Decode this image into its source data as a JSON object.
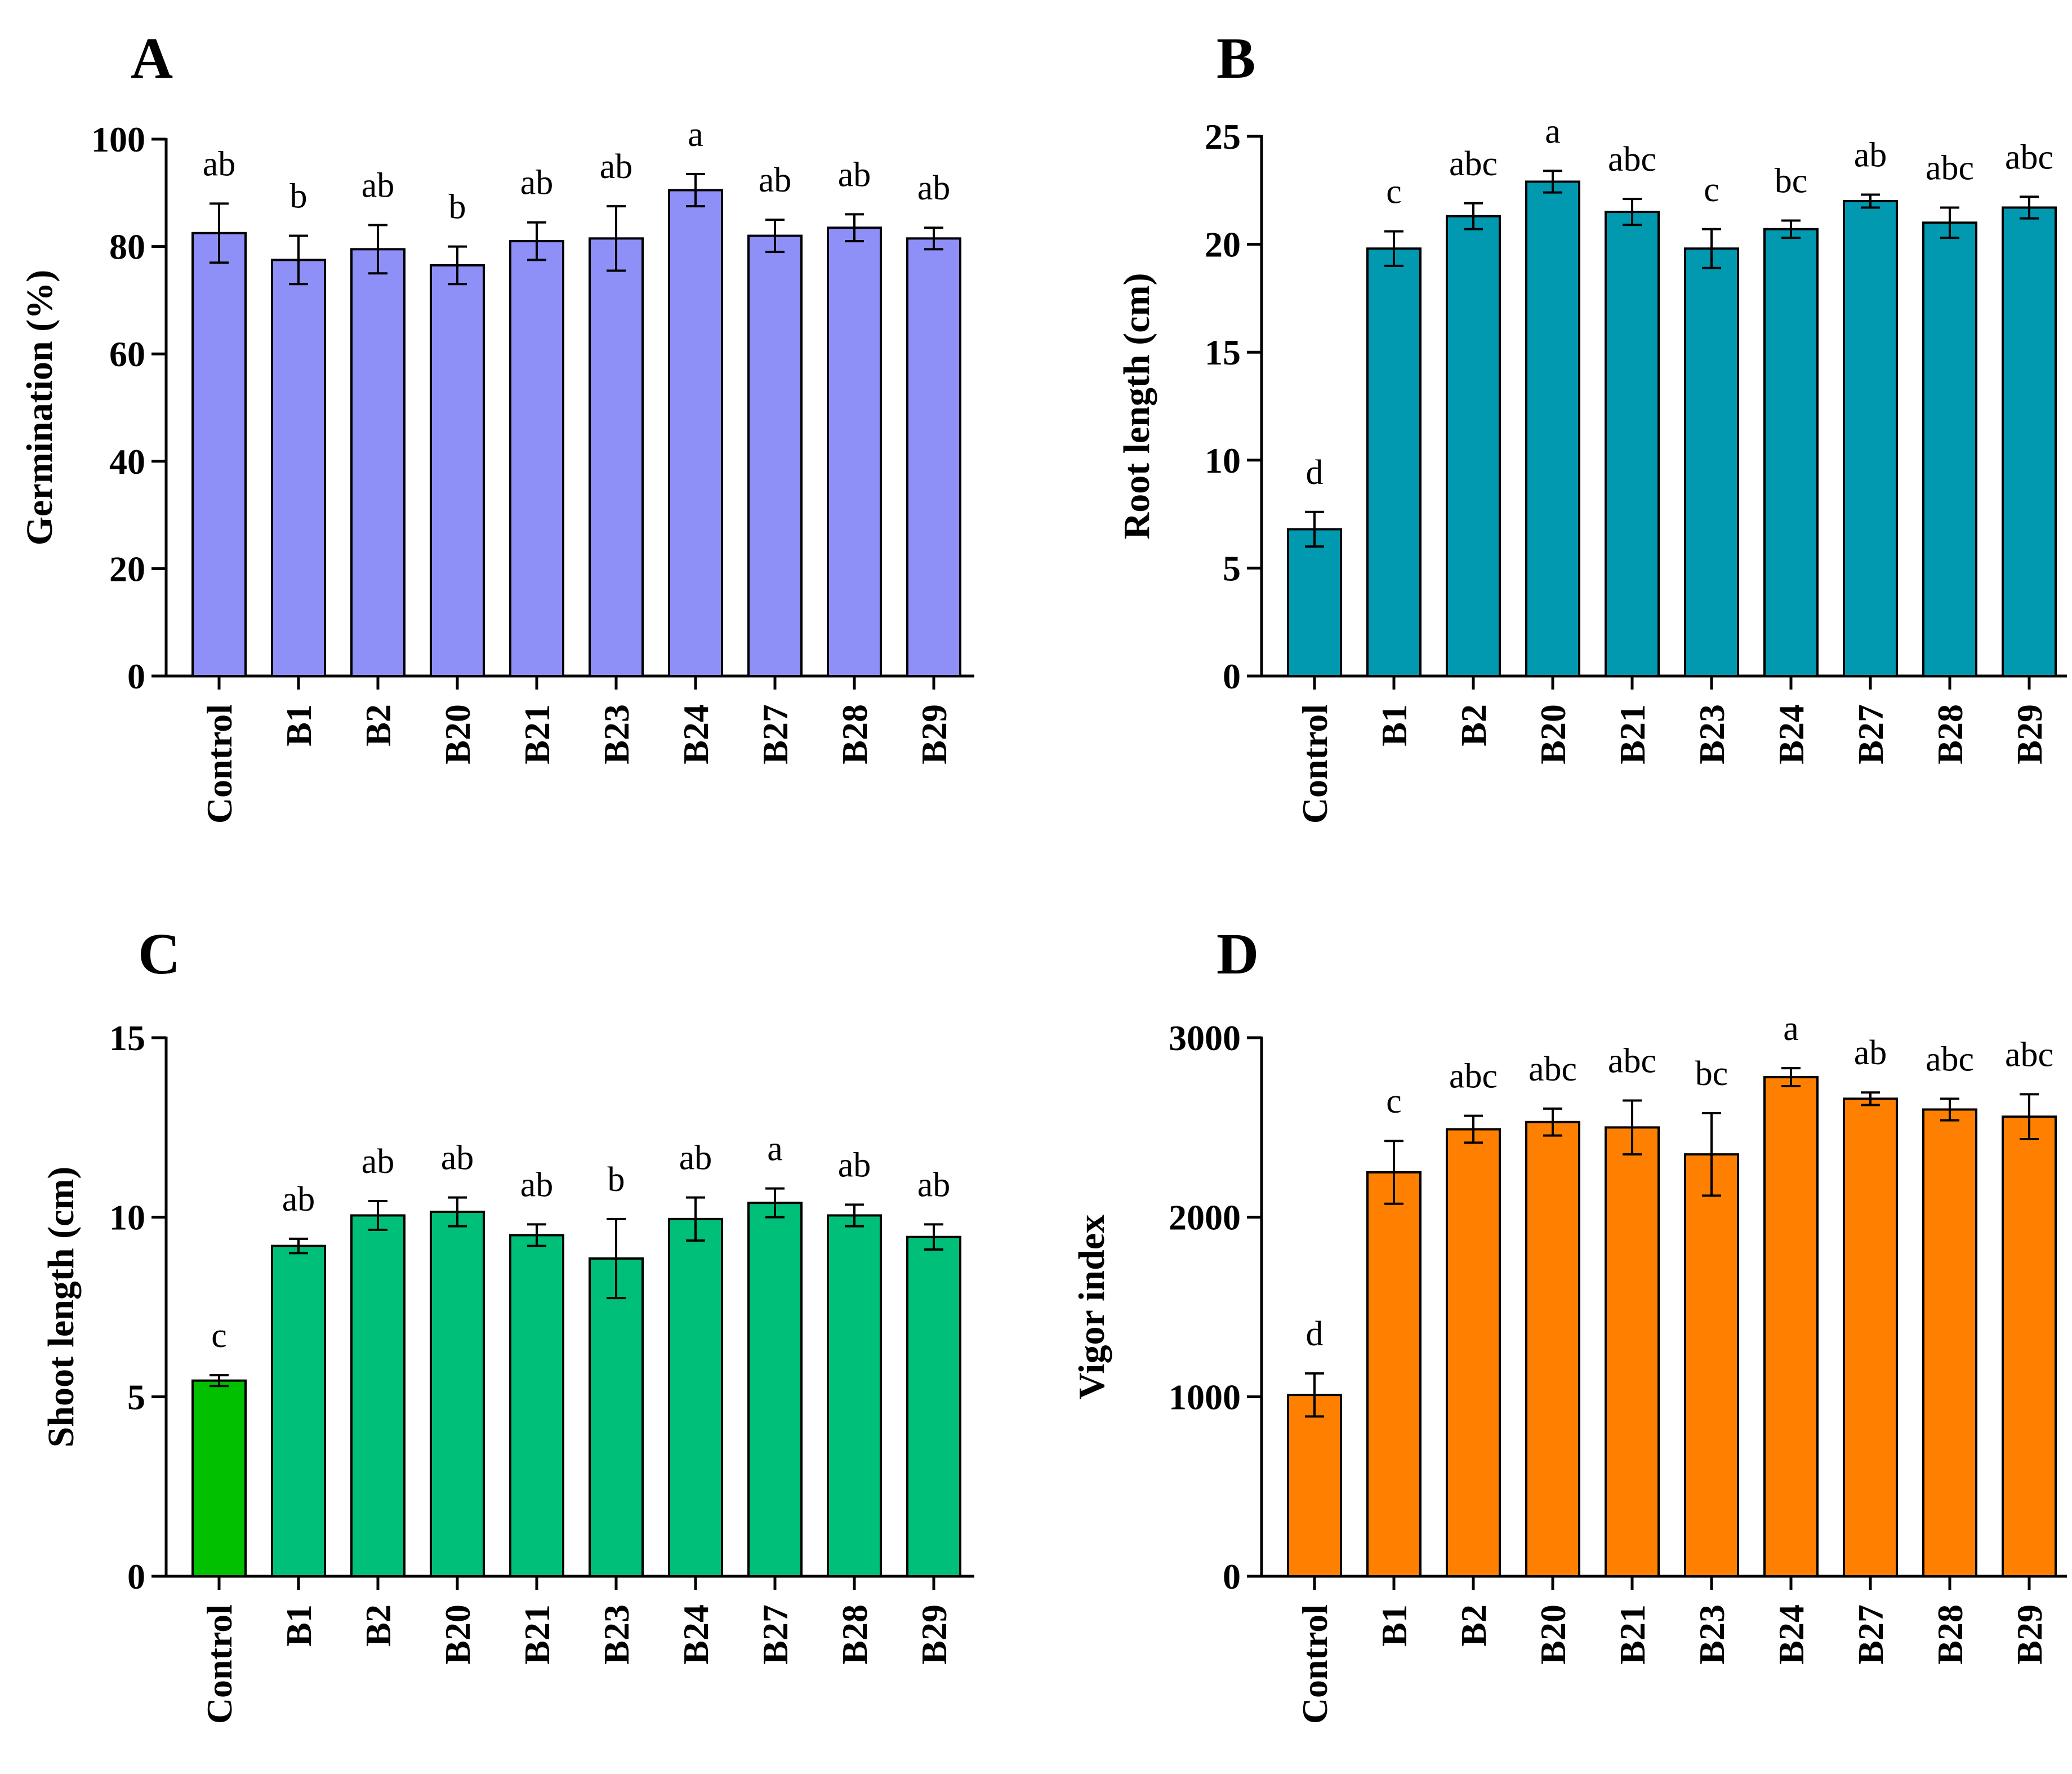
{
  "figure": {
    "categories": [
      "Control",
      "B1",
      "B2",
      "B20",
      "B21",
      "B23",
      "B24",
      "B27",
      "B28",
      "B29"
    ]
  },
  "chart_data": [
    {
      "panel": "A",
      "type": "bar",
      "ylabel": "Germination (%)",
      "ylim": [
        0,
        100
      ],
      "yticks": [
        0,
        20,
        40,
        60,
        80,
        100
      ],
      "categories": [
        "Control",
        "B1",
        "B2",
        "B20",
        "B21",
        "B23",
        "B24",
        "B27",
        "B28",
        "B29"
      ],
      "values": [
        82.5,
        77.5,
        79.5,
        76.5,
        81,
        81.5,
        90.5,
        82,
        83.5,
        81.5
      ],
      "errors": [
        5.5,
        4.5,
        4.5,
        3.5,
        3.5,
        6,
        3,
        3,
        2.5,
        2
      ],
      "significance": [
        "ab",
        "b",
        "ab",
        "b",
        "ab",
        "ab",
        "a",
        "ab",
        "ab",
        "ab"
      ],
      "colors": [
        "#8F8FF8"
      ]
    },
    {
      "panel": "B",
      "type": "bar",
      "ylabel": "Root length (cm)",
      "ylim": [
        0,
        25
      ],
      "yticks": [
        0,
        5,
        10,
        15,
        20,
        25
      ],
      "categories": [
        "Control",
        "B1",
        "B2",
        "B20",
        "B21",
        "B23",
        "B24",
        "B27",
        "B28",
        "B29"
      ],
      "values": [
        6.8,
        19.8,
        21.3,
        22.9,
        21.5,
        19.8,
        20.7,
        22.0,
        21.0,
        21.7
      ],
      "errors": [
        0.8,
        0.8,
        0.6,
        0.5,
        0.6,
        0.9,
        0.4,
        0.3,
        0.7,
        0.5
      ],
      "significance": [
        "d",
        "c",
        "abc",
        "a",
        "abc",
        "c",
        "bc",
        "ab",
        "abc",
        "abc"
      ],
      "colors": [
        "#0099B0"
      ]
    },
    {
      "panel": "C",
      "type": "bar",
      "ylabel": "Shoot length (cm)",
      "ylim": [
        0,
        15
      ],
      "yticks": [
        0,
        5,
        10,
        15
      ],
      "categories": [
        "Control",
        "B1",
        "B2",
        "B20",
        "B21",
        "B23",
        "B24",
        "B27",
        "B28",
        "B29"
      ],
      "values": [
        5.45,
        9.2,
        10.05,
        10.15,
        9.5,
        8.85,
        9.95,
        10.4,
        10.05,
        9.45
      ],
      "errors": [
        0.15,
        0.2,
        0.4,
        0.4,
        0.3,
        1.1,
        0.6,
        0.4,
        0.3,
        0.35
      ],
      "significance": [
        "c",
        "ab",
        "ab",
        "ab",
        "ab",
        "b",
        "ab",
        "a",
        "ab",
        "ab"
      ],
      "colors": [
        "#00C000",
        "#00BF78"
      ]
    },
    {
      "panel": "D",
      "type": "bar",
      "ylabel": "Vigor index",
      "ylim": [
        0,
        3000
      ],
      "yticks": [
        0,
        1000,
        2000,
        3000
      ],
      "categories": [
        "Control",
        "B1",
        "B2",
        "B20",
        "B21",
        "B23",
        "B24",
        "B27",
        "B28",
        "B29"
      ],
      "values": [
        1010,
        2250,
        2490,
        2530,
        2500,
        2350,
        2780,
        2660,
        2600,
        2560
      ],
      "errors": [
        120,
        175,
        75,
        75,
        150,
        230,
        50,
        35,
        60,
        125
      ],
      "significance": [
        "d",
        "c",
        "abc",
        "abc",
        "abc",
        "bc",
        "a",
        "ab",
        "abc",
        "abc"
      ],
      "colors": [
        "#FF8000"
      ]
    }
  ]
}
